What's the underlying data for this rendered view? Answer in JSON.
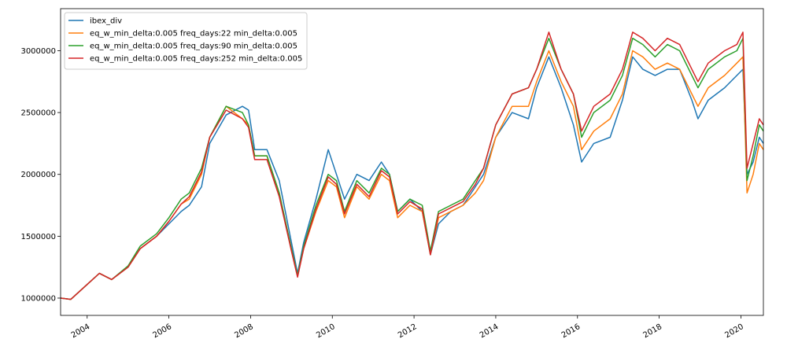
{
  "chart_data": {
    "type": "line",
    "title": "",
    "xlabel": "",
    "ylabel": "",
    "xlim": [
      2003.35,
      2020.55
    ],
    "ylim": [
      860000,
      3340000
    ],
    "grid": false,
    "legend_position": "top-left",
    "x_ticks": [
      {
        "value": 2004,
        "label": "2004"
      },
      {
        "value": 2006,
        "label": "2006"
      },
      {
        "value": 2008,
        "label": "2008"
      },
      {
        "value": 2010,
        "label": "2010"
      },
      {
        "value": 2012,
        "label": "2012"
      },
      {
        "value": 2014,
        "label": "2014"
      },
      {
        "value": 2016,
        "label": "2016"
      },
      {
        "value": 2018,
        "label": "2018"
      },
      {
        "value": 2020,
        "label": "2020"
      }
    ],
    "y_ticks": [
      {
        "value": 1000000,
        "label": "1000000"
      },
      {
        "value": 1500000,
        "label": "1500000"
      },
      {
        "value": 2000000,
        "label": "2000000"
      },
      {
        "value": 2500000,
        "label": "2500000"
      },
      {
        "value": 3000000,
        "label": "3000000"
      }
    ],
    "series": [
      {
        "name": "ibex_div",
        "color": "#1f77b4",
        "points": [
          [
            2003.35,
            1000000
          ],
          [
            2003.6,
            990000
          ],
          [
            2004.0,
            1110000
          ],
          [
            2004.3,
            1200000
          ],
          [
            2004.6,
            1150000
          ],
          [
            2005.0,
            1250000
          ],
          [
            2005.3,
            1400000
          ],
          [
            2005.7,
            1500000
          ],
          [
            2006.0,
            1600000
          ],
          [
            2006.3,
            1700000
          ],
          [
            2006.5,
            1750000
          ],
          [
            2006.8,
            1900000
          ],
          [
            2007.0,
            2250000
          ],
          [
            2007.4,
            2480000
          ],
          [
            2007.8,
            2550000
          ],
          [
            2007.95,
            2520000
          ],
          [
            2008.1,
            2200000
          ],
          [
            2008.4,
            2200000
          ],
          [
            2008.7,
            1950000
          ],
          [
            2009.0,
            1450000
          ],
          [
            2009.15,
            1200000
          ],
          [
            2009.3,
            1450000
          ],
          [
            2009.6,
            1800000
          ],
          [
            2009.9,
            2200000
          ],
          [
            2010.1,
            2000000
          ],
          [
            2010.3,
            1800000
          ],
          [
            2010.6,
            2000000
          ],
          [
            2010.9,
            1950000
          ],
          [
            2011.2,
            2100000
          ],
          [
            2011.4,
            2000000
          ],
          [
            2011.6,
            1700000
          ],
          [
            2011.9,
            1800000
          ],
          [
            2012.2,
            1700000
          ],
          [
            2012.4,
            1350000
          ],
          [
            2012.6,
            1600000
          ],
          [
            2012.9,
            1700000
          ],
          [
            2013.2,
            1750000
          ],
          [
            2013.5,
            1900000
          ],
          [
            2013.7,
            2000000
          ],
          [
            2014.0,
            2300000
          ],
          [
            2014.4,
            2500000
          ],
          [
            2014.8,
            2450000
          ],
          [
            2015.0,
            2700000
          ],
          [
            2015.3,
            2950000
          ],
          [
            2015.6,
            2700000
          ],
          [
            2015.9,
            2400000
          ],
          [
            2016.1,
            2100000
          ],
          [
            2016.4,
            2250000
          ],
          [
            2016.8,
            2300000
          ],
          [
            2017.1,
            2600000
          ],
          [
            2017.35,
            2950000
          ],
          [
            2017.6,
            2850000
          ],
          [
            2017.9,
            2800000
          ],
          [
            2018.2,
            2850000
          ],
          [
            2018.5,
            2850000
          ],
          [
            2018.8,
            2600000
          ],
          [
            2018.95,
            2450000
          ],
          [
            2019.2,
            2600000
          ],
          [
            2019.6,
            2700000
          ],
          [
            2019.9,
            2800000
          ],
          [
            2020.05,
            2850000
          ],
          [
            2020.15,
            2000000
          ],
          [
            2020.3,
            2100000
          ],
          [
            2020.45,
            2300000
          ],
          [
            2020.55,
            2250000
          ]
        ]
      },
      {
        "name": "eq_w_min_delta:0.005 freq_days:22 min_delta:0.005",
        "color": "#ff7f0e",
        "points": [
          [
            2003.35,
            1000000
          ],
          [
            2003.6,
            990000
          ],
          [
            2004.0,
            1110000
          ],
          [
            2004.3,
            1200000
          ],
          [
            2004.6,
            1150000
          ],
          [
            2005.0,
            1250000
          ],
          [
            2005.3,
            1400000
          ],
          [
            2005.7,
            1500000
          ],
          [
            2006.0,
            1620000
          ],
          [
            2006.3,
            1760000
          ],
          [
            2006.5,
            1800000
          ],
          [
            2006.8,
            2000000
          ],
          [
            2007.0,
            2300000
          ],
          [
            2007.4,
            2550000
          ],
          [
            2007.8,
            2450000
          ],
          [
            2007.95,
            2400000
          ],
          [
            2008.1,
            2150000
          ],
          [
            2008.4,
            2150000
          ],
          [
            2008.7,
            1850000
          ],
          [
            2009.0,
            1400000
          ],
          [
            2009.15,
            1180000
          ],
          [
            2009.3,
            1400000
          ],
          [
            2009.6,
            1700000
          ],
          [
            2009.9,
            1950000
          ],
          [
            2010.1,
            1900000
          ],
          [
            2010.3,
            1650000
          ],
          [
            2010.6,
            1900000
          ],
          [
            2010.9,
            1800000
          ],
          [
            2011.2,
            2000000
          ],
          [
            2011.4,
            1950000
          ],
          [
            2011.6,
            1650000
          ],
          [
            2011.9,
            1750000
          ],
          [
            2012.2,
            1700000
          ],
          [
            2012.4,
            1350000
          ],
          [
            2012.6,
            1650000
          ],
          [
            2012.9,
            1700000
          ],
          [
            2013.2,
            1750000
          ],
          [
            2013.5,
            1850000
          ],
          [
            2013.7,
            1950000
          ],
          [
            2014.0,
            2300000
          ],
          [
            2014.4,
            2550000
          ],
          [
            2014.8,
            2550000
          ],
          [
            2015.0,
            2750000
          ],
          [
            2015.3,
            3000000
          ],
          [
            2015.6,
            2750000
          ],
          [
            2015.9,
            2550000
          ],
          [
            2016.1,
            2200000
          ],
          [
            2016.4,
            2350000
          ],
          [
            2016.8,
            2450000
          ],
          [
            2017.1,
            2650000
          ],
          [
            2017.35,
            3000000
          ],
          [
            2017.6,
            2950000
          ],
          [
            2017.9,
            2850000
          ],
          [
            2018.2,
            2900000
          ],
          [
            2018.5,
            2850000
          ],
          [
            2018.8,
            2650000
          ],
          [
            2018.95,
            2550000
          ],
          [
            2019.2,
            2700000
          ],
          [
            2019.6,
            2800000
          ],
          [
            2019.9,
            2900000
          ],
          [
            2020.05,
            2950000
          ],
          [
            2020.15,
            1850000
          ],
          [
            2020.3,
            2000000
          ],
          [
            2020.45,
            2250000
          ],
          [
            2020.55,
            2200000
          ]
        ]
      },
      {
        "name": "eq_w_min_delta:0.005 freq_days:90 min_delta:0.005",
        "color": "#2ca02c",
        "points": [
          [
            2003.35,
            1000000
          ],
          [
            2003.6,
            990000
          ],
          [
            2004.0,
            1110000
          ],
          [
            2004.3,
            1200000
          ],
          [
            2004.6,
            1150000
          ],
          [
            2005.0,
            1260000
          ],
          [
            2005.3,
            1420000
          ],
          [
            2005.7,
            1520000
          ],
          [
            2006.0,
            1650000
          ],
          [
            2006.3,
            1800000
          ],
          [
            2006.5,
            1850000
          ],
          [
            2006.8,
            2050000
          ],
          [
            2007.0,
            2300000
          ],
          [
            2007.4,
            2550000
          ],
          [
            2007.8,
            2500000
          ],
          [
            2007.95,
            2400000
          ],
          [
            2008.1,
            2150000
          ],
          [
            2008.4,
            2150000
          ],
          [
            2008.7,
            1850000
          ],
          [
            2009.0,
            1400000
          ],
          [
            2009.15,
            1180000
          ],
          [
            2009.3,
            1420000
          ],
          [
            2009.6,
            1750000
          ],
          [
            2009.9,
            2000000
          ],
          [
            2010.1,
            1950000
          ],
          [
            2010.3,
            1700000
          ],
          [
            2010.6,
            1950000
          ],
          [
            2010.9,
            1850000
          ],
          [
            2011.2,
            2050000
          ],
          [
            2011.4,
            2000000
          ],
          [
            2011.6,
            1700000
          ],
          [
            2011.9,
            1800000
          ],
          [
            2012.2,
            1750000
          ],
          [
            2012.4,
            1380000
          ],
          [
            2012.6,
            1700000
          ],
          [
            2012.9,
            1750000
          ],
          [
            2013.2,
            1800000
          ],
          [
            2013.5,
            1950000
          ],
          [
            2013.7,
            2050000
          ],
          [
            2014.0,
            2400000
          ],
          [
            2014.4,
            2650000
          ],
          [
            2014.8,
            2700000
          ],
          [
            2015.0,
            2850000
          ],
          [
            2015.3,
            3100000
          ],
          [
            2015.6,
            2850000
          ],
          [
            2015.9,
            2650000
          ],
          [
            2016.1,
            2300000
          ],
          [
            2016.4,
            2500000
          ],
          [
            2016.8,
            2600000
          ],
          [
            2017.1,
            2800000
          ],
          [
            2017.35,
            3100000
          ],
          [
            2017.6,
            3050000
          ],
          [
            2017.9,
            2950000
          ],
          [
            2018.2,
            3050000
          ],
          [
            2018.5,
            3000000
          ],
          [
            2018.8,
            2800000
          ],
          [
            2018.95,
            2700000
          ],
          [
            2019.2,
            2850000
          ],
          [
            2019.6,
            2950000
          ],
          [
            2019.9,
            3000000
          ],
          [
            2020.05,
            3100000
          ],
          [
            2020.15,
            1950000
          ],
          [
            2020.3,
            2150000
          ],
          [
            2020.45,
            2400000
          ],
          [
            2020.55,
            2350000
          ]
        ]
      },
      {
        "name": "eq_w_min_delta:0.005 freq_days:252 min_delta:0.005",
        "color": "#d62728",
        "points": [
          [
            2003.35,
            1000000
          ],
          [
            2003.6,
            990000
          ],
          [
            2004.0,
            1110000
          ],
          [
            2004.3,
            1200000
          ],
          [
            2004.6,
            1150000
          ],
          [
            2005.0,
            1250000
          ],
          [
            2005.3,
            1400000
          ],
          [
            2005.7,
            1500000
          ],
          [
            2006.0,
            1620000
          ],
          [
            2006.3,
            1760000
          ],
          [
            2006.5,
            1820000
          ],
          [
            2006.8,
            2020000
          ],
          [
            2007.0,
            2300000
          ],
          [
            2007.4,
            2520000
          ],
          [
            2007.8,
            2450000
          ],
          [
            2007.95,
            2380000
          ],
          [
            2008.1,
            2120000
          ],
          [
            2008.4,
            2120000
          ],
          [
            2008.7,
            1820000
          ],
          [
            2009.0,
            1380000
          ],
          [
            2009.15,
            1170000
          ],
          [
            2009.3,
            1400000
          ],
          [
            2009.6,
            1720000
          ],
          [
            2009.9,
            1980000
          ],
          [
            2010.1,
            1920000
          ],
          [
            2010.3,
            1680000
          ],
          [
            2010.6,
            1920000
          ],
          [
            2010.9,
            1820000
          ],
          [
            2011.2,
            2030000
          ],
          [
            2011.4,
            1980000
          ],
          [
            2011.6,
            1680000
          ],
          [
            2011.9,
            1780000
          ],
          [
            2012.2,
            1720000
          ],
          [
            2012.4,
            1350000
          ],
          [
            2012.6,
            1680000
          ],
          [
            2012.9,
            1730000
          ],
          [
            2013.2,
            1780000
          ],
          [
            2013.5,
            1920000
          ],
          [
            2013.7,
            2050000
          ],
          [
            2014.0,
            2400000
          ],
          [
            2014.4,
            2650000
          ],
          [
            2014.8,
            2700000
          ],
          [
            2015.0,
            2850000
          ],
          [
            2015.3,
            3150000
          ],
          [
            2015.6,
            2850000
          ],
          [
            2015.9,
            2650000
          ],
          [
            2016.1,
            2350000
          ],
          [
            2016.4,
            2550000
          ],
          [
            2016.8,
            2650000
          ],
          [
            2017.1,
            2850000
          ],
          [
            2017.35,
            3150000
          ],
          [
            2017.6,
            3100000
          ],
          [
            2017.9,
            3000000
          ],
          [
            2018.2,
            3100000
          ],
          [
            2018.5,
            3050000
          ],
          [
            2018.8,
            2850000
          ],
          [
            2018.95,
            2750000
          ],
          [
            2019.2,
            2900000
          ],
          [
            2019.6,
            3000000
          ],
          [
            2019.9,
            3050000
          ],
          [
            2020.05,
            3150000
          ],
          [
            2020.15,
            2050000
          ],
          [
            2020.3,
            2250000
          ],
          [
            2020.45,
            2450000
          ],
          [
            2020.55,
            2400000
          ]
        ]
      }
    ]
  }
}
